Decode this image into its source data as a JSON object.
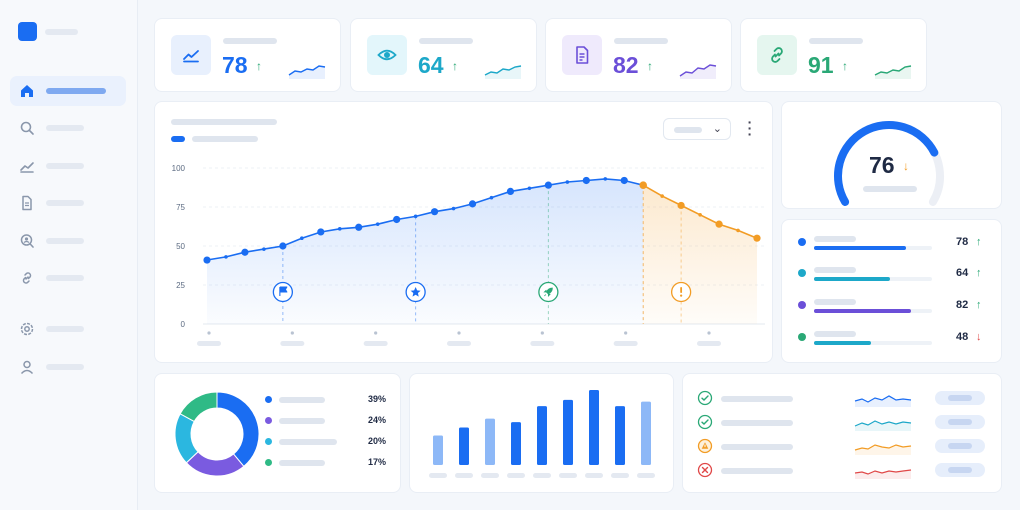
{
  "kpis": [
    {
      "value": "78",
      "arrow": "↑",
      "icon": "trend-up-icon",
      "color": "#1a6df2",
      "iconBg": "#e8f0fd"
    },
    {
      "value": "64",
      "arrow": "↑",
      "icon": "eye-icon",
      "color": "#1da8c9",
      "iconBg": "#e3f6fb"
    },
    {
      "value": "82",
      "arrow": "↑",
      "icon": "document-icon",
      "color": "#6b4fd8",
      "iconBg": "#efeafc"
    },
    {
      "value": "91",
      "arrow": "↑",
      "icon": "link-icon",
      "color": "#2aa876",
      "iconBg": "#e5f6ef"
    }
  ],
  "colors": {
    "primary": "#1a6df2",
    "forecast": "#f29c25",
    "cyan": "#1da8c9",
    "purple": "#6b4fd8",
    "green": "#2aa876",
    "red": "#e04848"
  },
  "chart_data": [
    {
      "type": "line",
      "yticks": [
        "100",
        "75",
        "50",
        "25",
        "0"
      ],
      "ylim": [
        0,
        100
      ],
      "series": [
        {
          "values": [
            41,
            43,
            46,
            48,
            50,
            55,
            59,
            61,
            62,
            64,
            67,
            69,
            72,
            74,
            77,
            81,
            85,
            87,
            89,
            91,
            92,
            93,
            92,
            89
          ]
        },
        {
          "values": [
            89,
            82,
            76,
            70,
            64,
            60,
            55
          ]
        }
      ],
      "markers": [
        "flag-icon",
        "star-icon",
        "rocket-icon",
        "alert-icon"
      ],
      "grid": true
    },
    {
      "type": "pie",
      "slices": [
        {
          "label": "39%",
          "value": 39,
          "color": "#1a6df2"
        },
        {
          "label": "24%",
          "value": 24,
          "color": "#7a5be0"
        },
        {
          "label": "20%",
          "value": 20,
          "color": "#2bb7e0"
        },
        {
          "label": "17%",
          "value": 17,
          "color": "#2fba86"
        }
      ]
    },
    {
      "type": "bar",
      "values": [
        33,
        42,
        52,
        48,
        66,
        73,
        84,
        66,
        71
      ]
    }
  ],
  "gauge": {
    "value": "76",
    "arrow": "↓",
    "level": 0.76
  },
  "metrics": [
    {
      "value": "78",
      "arrow": "↑",
      "color": "#1a6df2",
      "level": 0.78
    },
    {
      "value": "64",
      "arrow": "↑",
      "color": "#1da8c9",
      "level": 0.64
    },
    {
      "value": "82",
      "arrow": "↑",
      "color": "#6b4fd8",
      "level": 0.82
    },
    {
      "value": "48",
      "arrow": "↓",
      "color": "#1da8c9",
      "level": 0.48
    }
  ],
  "status_list": [
    {
      "icon": "check-circle-icon",
      "color": "#2aa876",
      "spark": "#1a6df2"
    },
    {
      "icon": "check-circle-icon",
      "color": "#2aa876",
      "spark": "#1da8c9"
    },
    {
      "icon": "warning-icon",
      "color": "#f29c25",
      "spark": "#f29c25"
    },
    {
      "icon": "error-circle-icon",
      "color": "#e04848",
      "spark": "#e04848"
    }
  ]
}
